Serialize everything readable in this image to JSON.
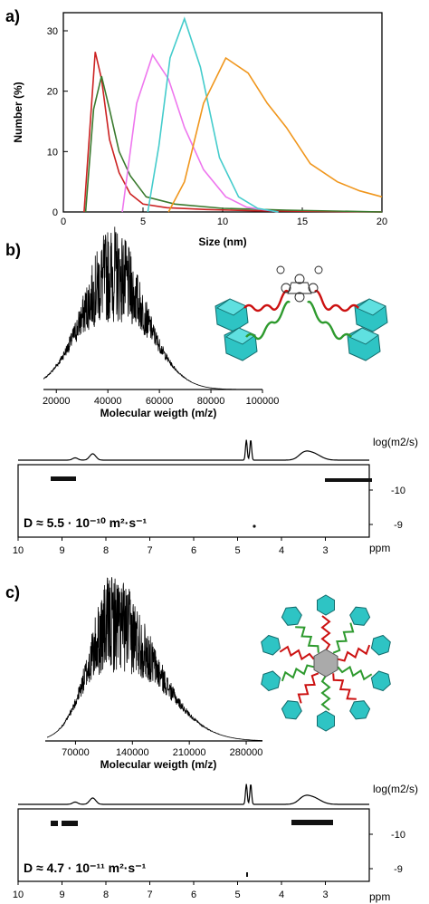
{
  "panel_labels": [
    "a)",
    "b)",
    "c)"
  ],
  "chart_data": [
    {
      "type": "line",
      "xlabel": "Size (nm)",
      "ylabel": "Number (%)",
      "xlim": [
        0,
        20
      ],
      "ylim": [
        0,
        33
      ],
      "xticks": [
        "0",
        "5",
        "10",
        "15",
        "20"
      ],
      "yticks": [
        "0",
        "10",
        "20",
        "30"
      ],
      "grid": false,
      "series": [
        {
          "color": "#cc2222",
          "x": [
            1.3,
            2.0,
            2.4,
            2.9,
            3.5,
            4.2,
            5.0,
            6.5,
            9,
            12,
            20
          ],
          "y": [
            0,
            26.5,
            22,
            12,
            6.5,
            3,
            1.3,
            0.7,
            0.4,
            0.2,
            0
          ]
        },
        {
          "color": "#3a7a2e",
          "x": [
            1.4,
            1.9,
            2.4,
            2.9,
            3.5,
            4.2,
            5.2,
            7,
            10,
            14,
            20
          ],
          "y": [
            0,
            17,
            22.5,
            17,
            10,
            6,
            2.5,
            1.3,
            0.6,
            0.3,
            0
          ]
        },
        {
          "color": "#ee77ee",
          "x": [
            3.7,
            4.6,
            5.6,
            6.6,
            7.6,
            8.8,
            10.2,
            11.5,
            13.5
          ],
          "y": [
            0,
            18,
            26,
            22,
            14,
            7,
            2.5,
            0.8,
            0
          ]
        },
        {
          "color": "#44cccc",
          "x": [
            5.3,
            6.0,
            6.7,
            7.6,
            8.6,
            9.8,
            11.0,
            12.2,
            13.5
          ],
          "y": [
            0,
            11,
            25.5,
            32,
            24,
            9,
            2.5,
            0.6,
            0
          ]
        },
        {
          "color": "#f0961c",
          "x": [
            6.6,
            7.6,
            8.8,
            10.2,
            11.6,
            12.8,
            14.0,
            15.5,
            17.2,
            18.6,
            20
          ],
          "y": [
            0,
            5,
            18,
            25.5,
            23,
            18,
            14,
            8,
            5,
            3.5,
            2.5
          ]
        }
      ]
    },
    {
      "type": "line",
      "xlabel": "Molecular weigth (m/z)",
      "xlim": [
        15000,
        100000
      ],
      "xticks": [
        "20000",
        "40000",
        "60000",
        "80000",
        "100000"
      ],
      "description_peak": "noisy mass spectrum",
      "center": 42000,
      "width": 13000,
      "max_intensity": 1.0
    },
    {
      "type": "heatmap",
      "xlabel": "ppm",
      "ylabel": "log(m2/s)",
      "xlim": [
        10,
        2
      ],
      "xticks": [
        "10",
        "9",
        "8",
        "7",
        "6",
        "5",
        "4",
        "3"
      ],
      "yticks": [
        "-10",
        "-9"
      ],
      "annotation": "D ≈ 5.5 · 10⁻¹⁰ m²·s⁻¹",
      "peaks_ppm": [
        8.7,
        8.3,
        4.75,
        3.5,
        3.3
      ]
    },
    {
      "type": "line",
      "xlabel": "Molecular weigth (m/z)",
      "xlim": [
        35000,
        300000
      ],
      "xticks": [
        "70000",
        "140000",
        "210000",
        "280000"
      ],
      "center": 115000,
      "width": 55000,
      "max_intensity": 1.0
    },
    {
      "type": "heatmap",
      "xlabel": "ppm",
      "ylabel": "log(m2/s)",
      "xlim": [
        10,
        2
      ],
      "xticks": [
        "10",
        "9",
        "8",
        "7",
        "6",
        "5",
        "4",
        "3"
      ],
      "yticks": [
        "-10",
        "-9"
      ],
      "annotation": "D ≈ 4.7 · 10⁻¹¹ m²·s⁻¹",
      "peaks_ppm": [
        8.7,
        8.3,
        4.75,
        3.5,
        3.3
      ]
    }
  ],
  "colors": {
    "cluster": "#2ec4c4",
    "red_linker": "#cc1111",
    "green_linker": "#2e9a2e",
    "core": "#aaaaaa"
  }
}
